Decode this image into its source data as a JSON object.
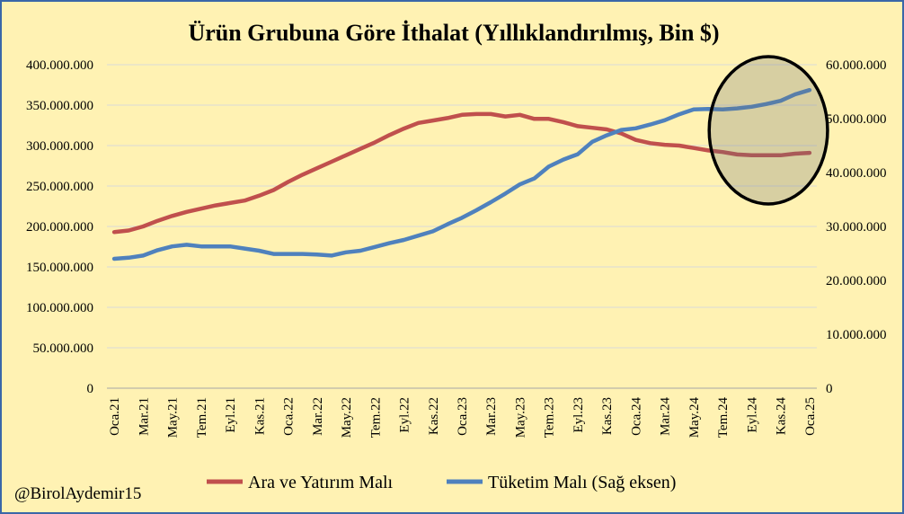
{
  "chart_data": {
    "type": "line",
    "title": "Ürün Grubuna Göre İthalat (Yıllıklandırılmış, Bin $)",
    "credit": "@BirolAydemir15",
    "categories": [
      "Oca.21",
      "Şub.21",
      "Mar.21",
      "Nis.21",
      "May.21",
      "Haz.21",
      "Tem.21",
      "Ağu.21",
      "Eyl.21",
      "Eki.21",
      "Kas.21",
      "Ara.21",
      "Oca.22",
      "Şub.22",
      "Mar.22",
      "Nis.22",
      "May.22",
      "Haz.22",
      "Tem.22",
      "Ağu.22",
      "Eyl.22",
      "Eki.22",
      "Kas.22",
      "Ara.22",
      "Oca.23",
      "Şub.23",
      "Mar.23",
      "Nis.23",
      "May.23",
      "Haz.23",
      "Tem.23",
      "Ağu.23",
      "Eyl.23",
      "Eki.23",
      "Kas.23",
      "Ara.23",
      "Oca.24",
      "Şub.24",
      "Mar.24",
      "Nis.24",
      "May.24",
      "Haz.24",
      "Tem.24",
      "Ağu.24",
      "Eyl.24",
      "Eki.24",
      "Kas.24",
      "Ara.24",
      "Oca.25"
    ],
    "x_tick_labels": [
      "Oca.21",
      "Mar.21",
      "May.21",
      "Tem.21",
      "Eyl.21",
      "Kas.21",
      "Oca.22",
      "Mar.22",
      "May.22",
      "Tem.22",
      "Eyl.22",
      "Kas.22",
      "Oca.23",
      "Mar.23",
      "May.23",
      "Tem.23",
      "Eyl.23",
      "Kas.23",
      "Oca.24",
      "Mar.24",
      "May.24",
      "Tem.24",
      "Eyl.24",
      "Kas.24",
      "Oca.25"
    ],
    "y_left": {
      "range": [
        0,
        400000000
      ],
      "ticks": [
        "0",
        "50.000.000",
        "100.000.000",
        "150.000.000",
        "200.000.000",
        "250.000.000",
        "300.000.000",
        "350.000.000",
        "400.000.000"
      ]
    },
    "y_right": {
      "range": [
        0,
        60000000
      ],
      "ticks": [
        "0",
        "10.000.000",
        "20.000.000",
        "30.000.000",
        "40.000.000",
        "50.000.000",
        "60.000.000"
      ]
    },
    "grid": true,
    "legend_position": "bottom",
    "series": [
      {
        "name": "Ara ve Yatırım Malı",
        "axis": "left",
        "color": "#C0504D",
        "values": [
          193000000,
          195000000,
          200000000,
          207000000,
          213000000,
          218000000,
          222000000,
          226000000,
          229000000,
          232000000,
          238000000,
          245000000,
          255000000,
          264000000,
          272000000,
          280000000,
          288000000,
          296000000,
          304000000,
          313000000,
          321000000,
          328000000,
          331000000,
          334000000,
          338000000,
          339000000,
          339000000,
          336000000,
          338000000,
          333000000,
          333000000,
          329000000,
          324000000,
          322000000,
          320000000,
          315000000,
          307000000,
          303000000,
          301000000,
          300000000,
          297000000,
          294000000,
          292000000,
          289000000,
          288000000,
          288000000,
          288000000,
          290000000,
          291000000
        ]
      },
      {
        "name": "Tüketim Malı (Sağ eksen)",
        "axis": "right",
        "color": "#4F81BD",
        "values": [
          24000000,
          24200000,
          24600000,
          25600000,
          26300000,
          26600000,
          26300000,
          26300000,
          26300000,
          25900000,
          25500000,
          24900000,
          24900000,
          24900000,
          24800000,
          24600000,
          25200000,
          25500000,
          26200000,
          26900000,
          27500000,
          28300000,
          29100000,
          30400000,
          31600000,
          33000000,
          34500000,
          36100000,
          37800000,
          38900000,
          41100000,
          42400000,
          43400000,
          45700000,
          46900000,
          47900000,
          48200000,
          48900000,
          49700000,
          50800000,
          51700000,
          51800000,
          51700000,
          51900000,
          52200000,
          52700000,
          53300000,
          54500000,
          55300000
        ]
      }
    ],
    "highlight": {
      "shape": "ellipse",
      "from": "Tem.24",
      "to": "Oca.25"
    }
  }
}
